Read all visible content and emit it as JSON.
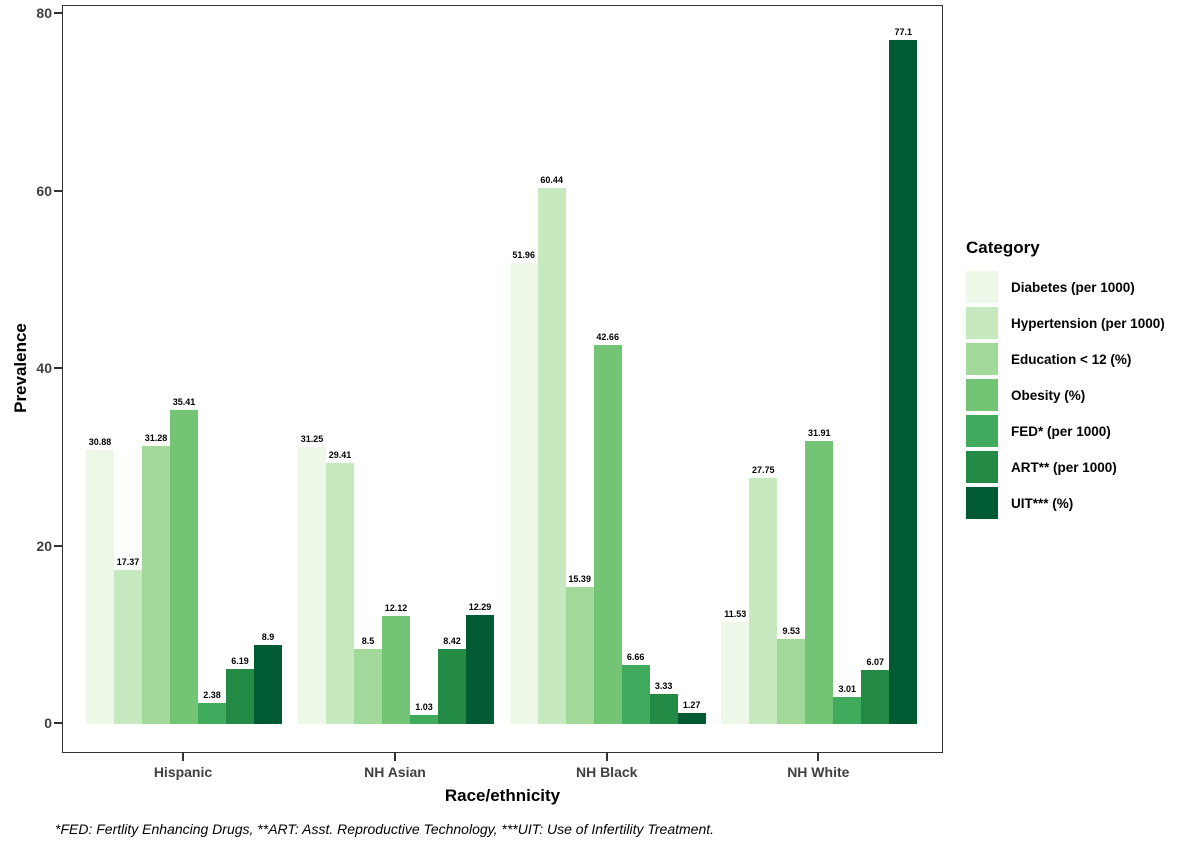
{
  "chart_data": {
    "type": "bar",
    "title": "",
    "xlabel": "Race/ethnicity",
    "ylabel": "Prevalence",
    "ylim": [
      0,
      80
    ],
    "yticks": [
      0,
      20,
      40,
      60,
      80
    ],
    "grid": false,
    "legend_title": "Category",
    "legend_position": "right",
    "categories": [
      "Hispanic",
      "NH Asian",
      "NH Black",
      "NH White"
    ],
    "series": [
      {
        "name": "Diabetes (per 1000)",
        "color": "#edf8e9",
        "values": [
          30.88,
          31.25,
          51.96,
          11.53
        ]
      },
      {
        "name": "Hypertension (per 1000)",
        "color": "#c7e9c0",
        "values": [
          17.37,
          29.41,
          60.44,
          27.75
        ]
      },
      {
        "name": "Education < 12 (%)",
        "color": "#a1d99b",
        "values": [
          31.28,
          8.5,
          15.39,
          9.53
        ]
      },
      {
        "name": "Obesity (%)",
        "color": "#74c476",
        "values": [
          35.41,
          12.12,
          42.66,
          31.91
        ]
      },
      {
        "name": "FED* (per 1000)",
        "color": "#41ab5d",
        "values": [
          2.38,
          1.03,
          6.66,
          3.01
        ]
      },
      {
        "name": "ART** (per 1000)",
        "color": "#238b45",
        "values": [
          6.19,
          8.42,
          3.33,
          6.07
        ]
      },
      {
        "name": "UIT*** (%)",
        "color": "#005a32",
        "values": [
          8.9,
          12.29,
          1.27,
          77.1
        ]
      }
    ],
    "footnote": "*FED: Fertlity Enhancing Drugs, **ART: Asst. Reproductive Technology, ***UIT: Use of Infertility Treatment."
  }
}
